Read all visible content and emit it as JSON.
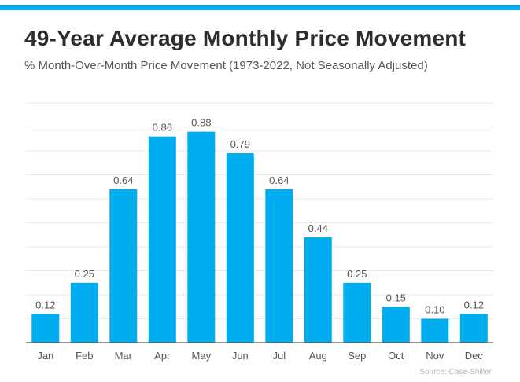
{
  "title": "49-Year Average Monthly Price Movement",
  "subtitle": "% Month-Over-Month Price Movement (1973-2022, Not Seasonally Adjusted)",
  "source": "Source: Case-Shiller",
  "colors": {
    "accent_bar": "#00aeef",
    "bars": "#00aeef",
    "title": "#2d2d2d",
    "text": "#555555"
  },
  "chart_data": {
    "type": "bar",
    "title": "49-Year Average Monthly Price Movement",
    "subtitle": "% Month-Over-Month Price Movement (1973-2022, Not Seasonally Adjusted)",
    "categories": [
      "Jan",
      "Feb",
      "Mar",
      "Apr",
      "May",
      "Jun",
      "Jul",
      "Aug",
      "Sep",
      "Oct",
      "Nov",
      "Dec"
    ],
    "values": [
      0.12,
      0.25,
      0.64,
      0.86,
      0.88,
      0.79,
      0.64,
      0.44,
      0.25,
      0.15,
      0.1,
      0.12
    ],
    "data_labels": [
      "0.12",
      "0.25",
      "0.64",
      "0.86",
      "0.88",
      "0.79",
      "0.64",
      "0.44",
      "0.25",
      "0.15",
      "0.10",
      "0.12"
    ],
    "xlabel": "",
    "ylabel": "",
    "ylim": [
      0,
      1.0
    ],
    "grid": true,
    "legend": "none",
    "source": "Source: Case-Shiller"
  }
}
